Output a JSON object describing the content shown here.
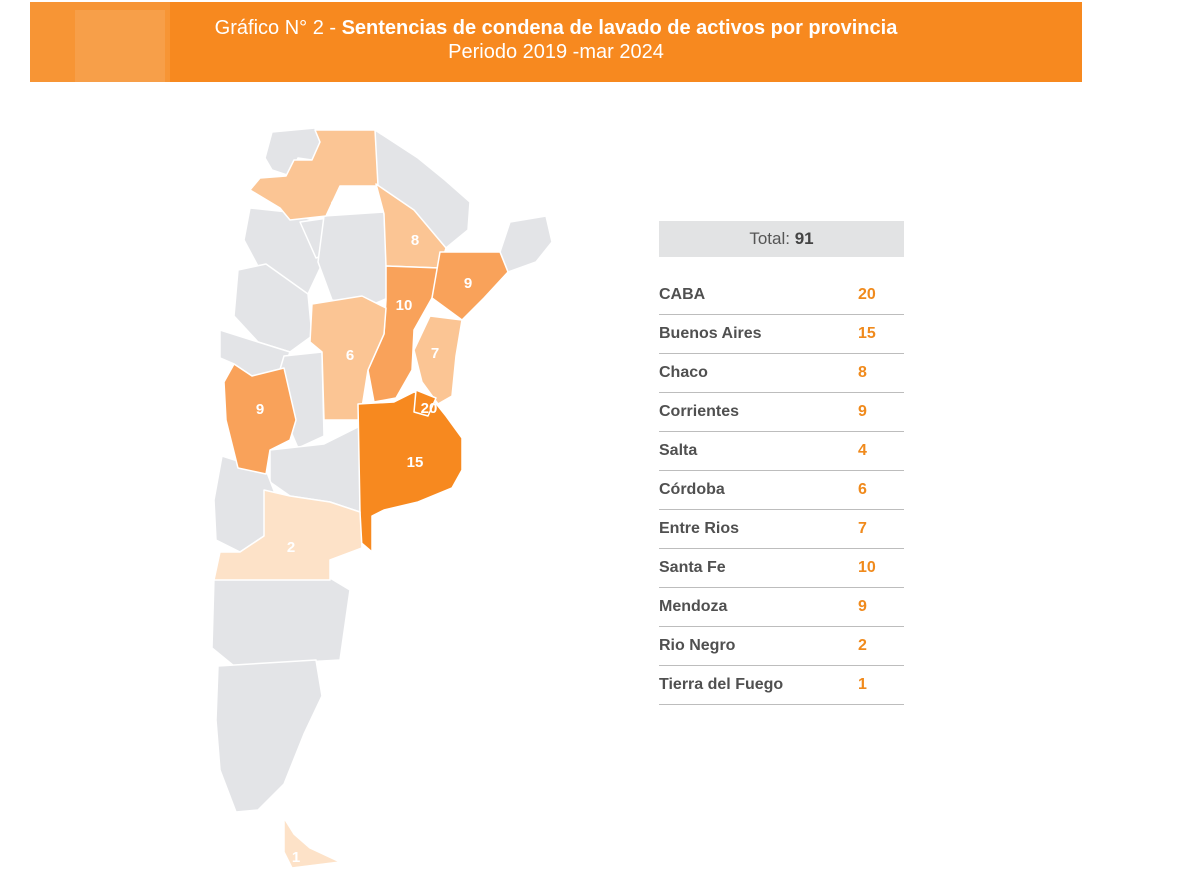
{
  "header": {
    "prefix": "Gráfico N° 2 - ",
    "title": "Sentencias de condena de lavado de activos por provincia",
    "period": "Periodo 2019 -mar 2024"
  },
  "total": {
    "label": "Total:",
    "value": "91"
  },
  "provinces": [
    {
      "name": "CABA",
      "value": "20"
    },
    {
      "name": "Buenos Aires",
      "value": "15"
    },
    {
      "name": "Chaco",
      "value": "8"
    },
    {
      "name": "Corrientes",
      "value": "9"
    },
    {
      "name": "Salta",
      "value": "4"
    },
    {
      "name": "Córdoba",
      "value": "6"
    },
    {
      "name": "Entre Rios",
      "value": "7"
    },
    {
      "name": "Santa Fe",
      "value": "10"
    },
    {
      "name": "Mendoza",
      "value": "9"
    },
    {
      "name": "Rio Negro",
      "value": "2"
    },
    {
      "name": "Tierra del Fuego",
      "value": "1"
    }
  ],
  "colors": {
    "header": "#f7891f",
    "high": "#f7891f",
    "mid": "#f9a25a",
    "low": "#fbc594",
    "lowest": "#fde2c8",
    "none": "#e3e4e7",
    "value_text": "#f08a1c"
  }
}
